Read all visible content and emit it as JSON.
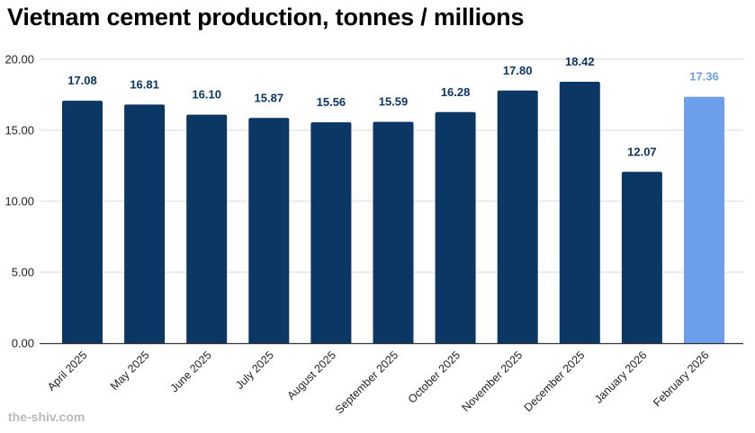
{
  "chart_data": {
    "type": "bar",
    "title": "Vietnam cement production, tonnes / millions",
    "xlabel": "",
    "ylabel": "",
    "ylim": [
      0,
      20
    ],
    "yticks": [
      "0.00",
      "5.00",
      "10.00",
      "15.00",
      "20.00"
    ],
    "grid": true,
    "legend": "none",
    "categories": [
      "April 2025",
      "May 2025",
      "June 2025",
      "July 2025",
      "August 2025",
      "September 2025",
      "October 2025",
      "November 2025",
      "December 2025",
      "January 2026",
      "February 2026"
    ],
    "values": [
      17.08,
      16.81,
      16.1,
      15.87,
      15.56,
      15.59,
      16.28,
      17.8,
      18.42,
      12.07,
      17.36
    ],
    "data_labels": [
      "17.08",
      "16.81",
      "16.10",
      "15.87",
      "15.56",
      "15.59",
      "16.28",
      "17.80",
      "18.42",
      "12.07",
      "17.36"
    ],
    "highlighted_category": "February 2026",
    "colors": {
      "bar": "#0a3764",
      "highlight": "#6d9eeb",
      "grid": "#d9d9d9",
      "axis": "#333333"
    }
  },
  "watermark": "the-shiv.com"
}
